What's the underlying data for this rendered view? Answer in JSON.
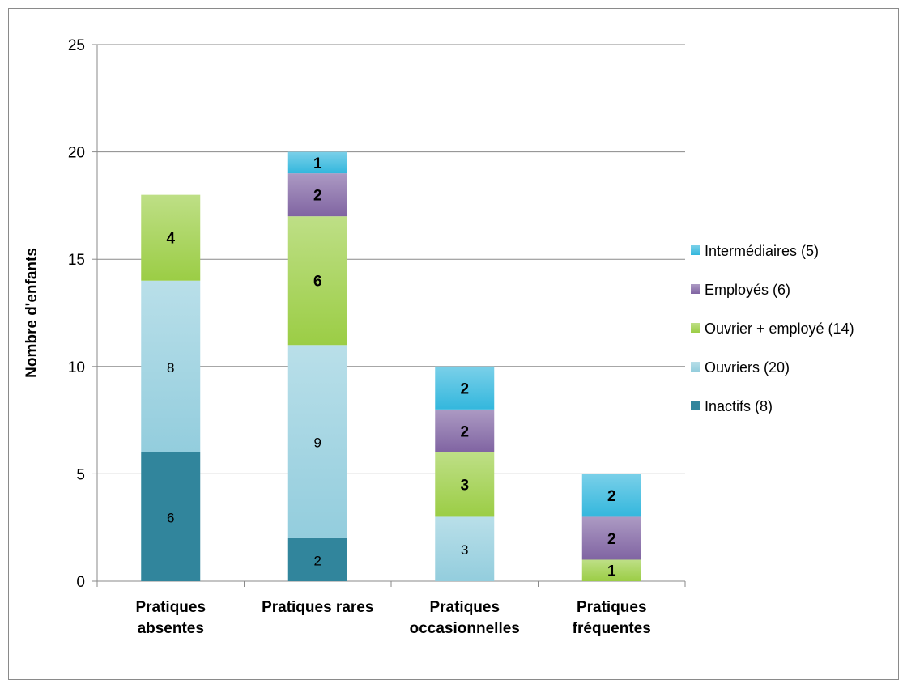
{
  "chart_data": {
    "type": "bar",
    "stacked": true,
    "ylabel": "Nombre d'enfants",
    "xlabel": "",
    "ylim": [
      0,
      25
    ],
    "yticks": [
      0,
      5,
      10,
      15,
      20,
      25
    ],
    "grid": true,
    "legend_position": "right",
    "categories": [
      [
        "Pratiques",
        "absentes"
      ],
      [
        "Pratiques rares"
      ],
      [
        "Pratiques",
        "occasionnelles"
      ],
      [
        "Pratiques",
        "fréquentes"
      ]
    ],
    "series": [
      {
        "name": "Inactifs (8)",
        "color": "#31859c",
        "values": [
          6,
          2,
          0,
          0
        ]
      },
      {
        "name": " Ouvriers (20)",
        "color": "#93cddd",
        "values": [
          8,
          9,
          3,
          0
        ]
      },
      {
        "name": "Ouvrier + employé (14)",
        "color": "#9bcd45",
        "values": [
          4,
          6,
          3,
          1
        ]
      },
      {
        "name": "Employés (6)",
        "color": "#8064a2",
        "values": [
          0,
          2,
          2,
          2
        ]
      },
      {
        "name": "Intermédiaires (5)",
        "color": "#33b7dd",
        "values": [
          0,
          1,
          2,
          2
        ]
      }
    ]
  }
}
